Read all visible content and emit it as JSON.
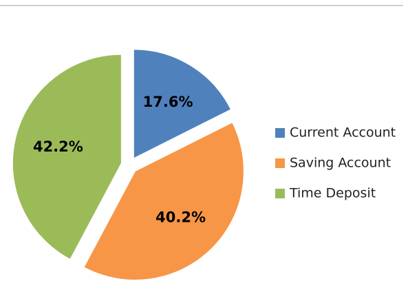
{
  "chart_data": {
    "type": "pie",
    "categories": [
      "Current Account",
      "Saving Account",
      "Time Deposit"
    ],
    "values": [
      17.6,
      40.2,
      42.2
    ],
    "value_labels": [
      "17.6%",
      "40.2%",
      "42.2%"
    ],
    "colors": [
      "#4f81bd",
      "#f79646",
      "#9bbb59"
    ],
    "legend": "right"
  }
}
